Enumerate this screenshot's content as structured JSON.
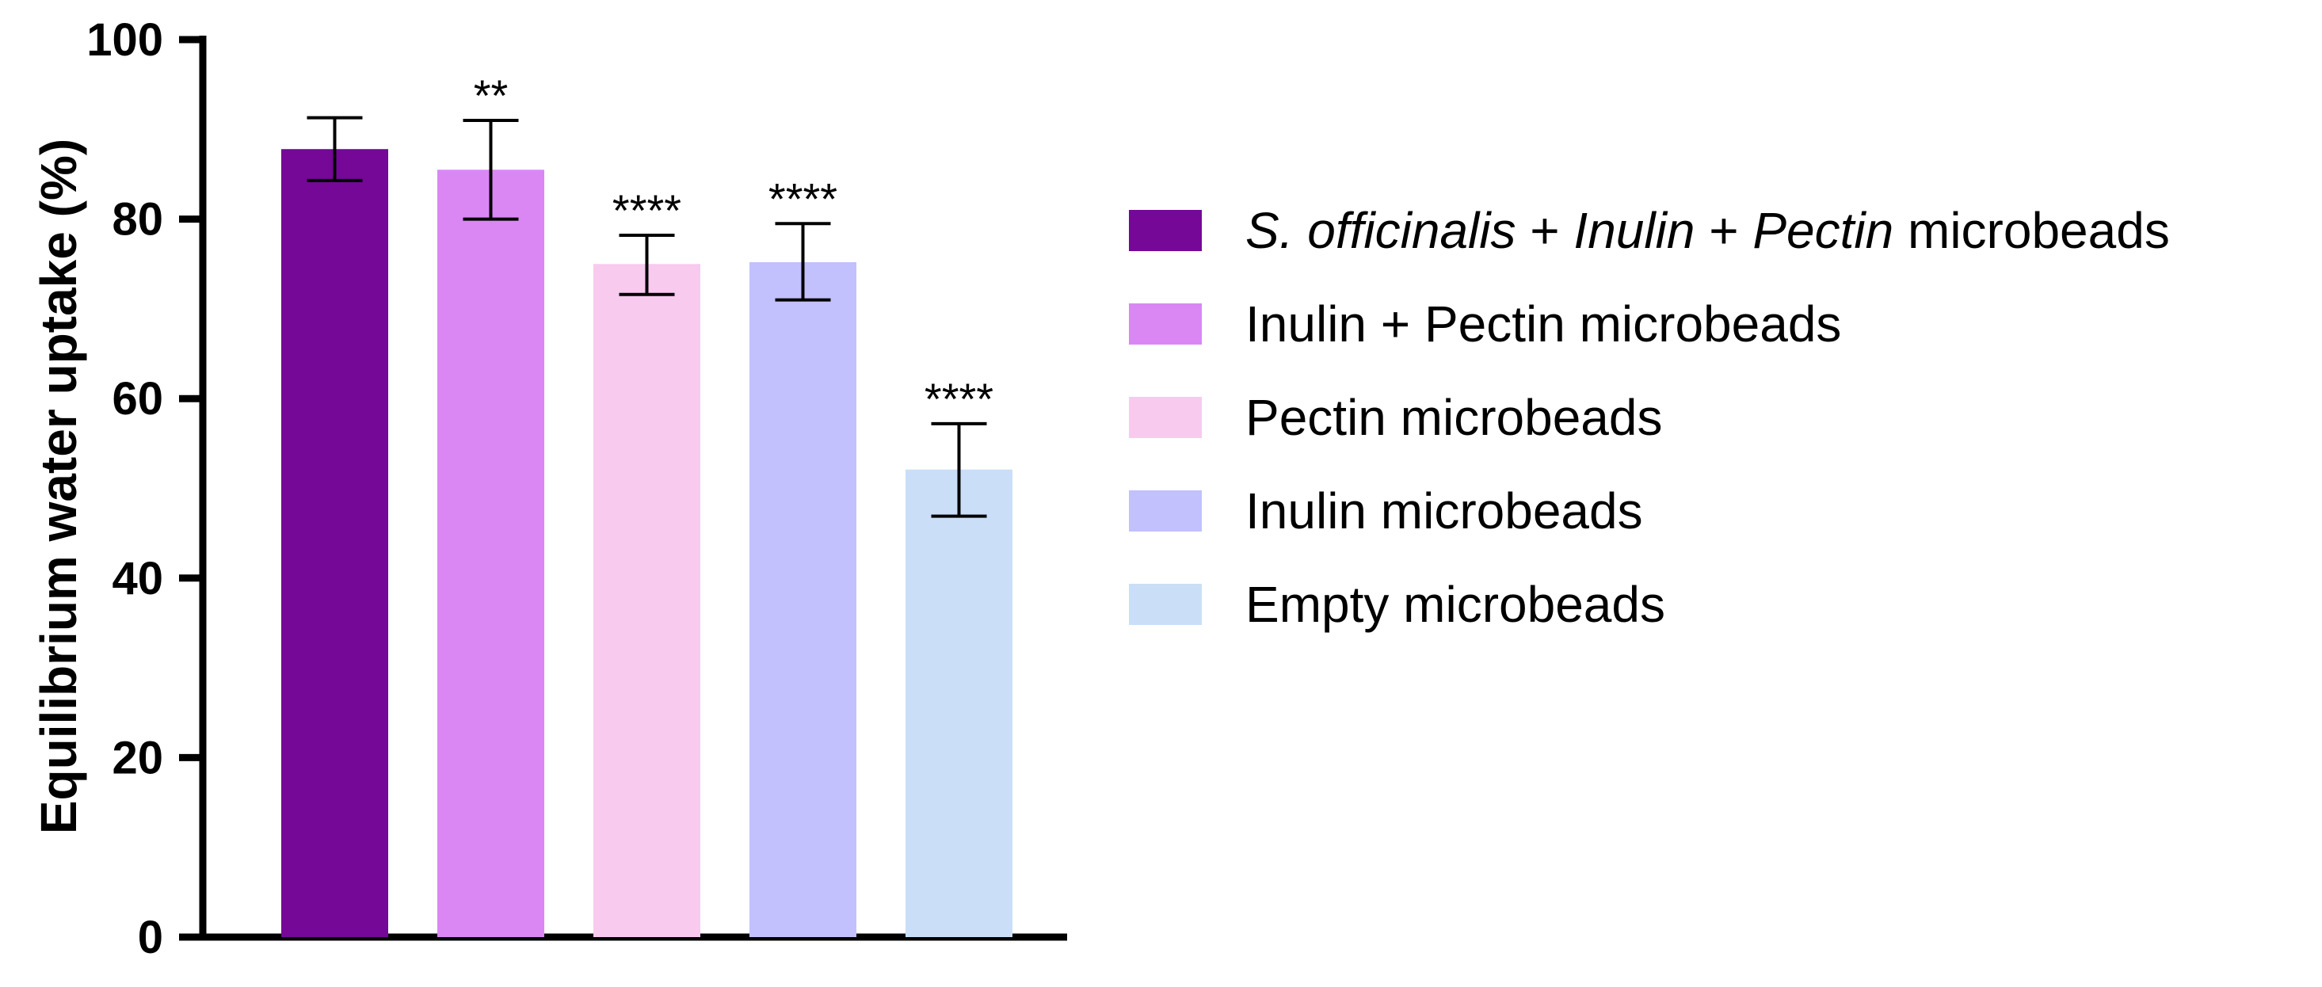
{
  "chart_data": {
    "type": "bar",
    "title": "",
    "xlabel": "",
    "ylabel": "Equilibrium water uptake (%)",
    "ylim": [
      0,
      100
    ],
    "yticks": [
      "0",
      "20",
      "40",
      "60",
      "80",
      "100"
    ],
    "grid": false,
    "legend_position": "right",
    "categories": [
      "S. officinalis + Inulin + Pectin microbeads",
      "Inulin + Pectin microbeads",
      "Pectin microbeads",
      "Inulin microbeads",
      "Empty microbeads"
    ],
    "values": [
      87.8,
      85.5,
      75.0,
      75.2,
      52.1
    ],
    "error_low": [
      84.3,
      80.0,
      71.6,
      71.0,
      46.9
    ],
    "error_high": [
      91.3,
      91.0,
      78.2,
      79.5,
      57.2
    ],
    "significance": [
      "",
      "**",
      "****",
      "****",
      "****"
    ],
    "colors": [
      "#750896",
      "#da87f4",
      "#f8caee",
      "#c2c1fd",
      "#cadff7"
    ],
    "legend": [
      {
        "parts": [
          {
            "text": "S. officinalis",
            "italic": true
          },
          {
            "text": " + ",
            "italic": false
          },
          {
            "text": "Inulin",
            "italic": true
          },
          {
            "text": " + ",
            "italic": false
          },
          {
            "text": "Pectin",
            "italic": true
          },
          {
            "text": " microbeads",
            "italic": false
          }
        ]
      },
      {
        "parts": [
          {
            "text": "Inulin + Pectin microbeads",
            "italic": false
          }
        ]
      },
      {
        "parts": [
          {
            "text": "Pectin microbeads",
            "italic": false
          }
        ]
      },
      {
        "parts": [
          {
            "text": "Inulin microbeads",
            "italic": false
          }
        ]
      },
      {
        "parts": [
          {
            "text": "Empty microbeads",
            "italic": false
          }
        ]
      }
    ]
  }
}
